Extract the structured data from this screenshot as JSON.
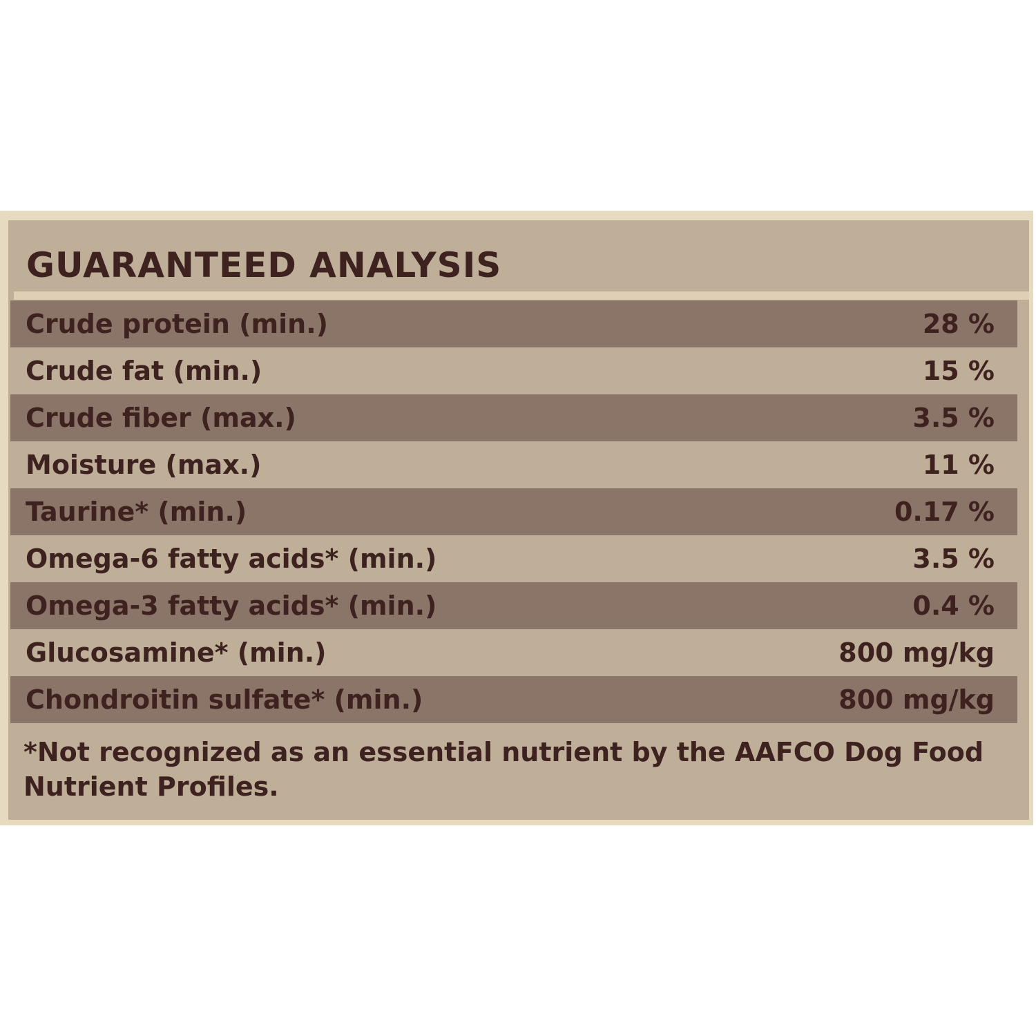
{
  "title": "GUARANTEED ANALYSIS",
  "rows": [
    {
      "label": "Crude protein (min.)",
      "value": "28 %"
    },
    {
      "label": "Crude fat (min.)",
      "value": "15 %"
    },
    {
      "label": "Crude fiber (max.)",
      "value": "3.5 %"
    },
    {
      "label": "Moisture (max.)",
      "value": "11 %"
    },
    {
      "label": "Taurine* (min.)",
      "value": "0.17 %"
    },
    {
      "label": "Omega-6 fatty acids* (min.)",
      "value": "3.5 %"
    },
    {
      "label": "Omega-3 fatty acids* (min.)",
      "value": "0.4 %"
    },
    {
      "label": "Glucosamine* (min.)",
      "value": "800 mg/kg"
    },
    {
      "label": "Chondroitin sulfate* (min.)",
      "value": "800 mg/kg"
    }
  ],
  "footnote": "*Not recognized as an essential nutrient by the AAFCO Dog Food Nutrient Profiles.",
  "colors": {
    "frame": "#e6dbc0",
    "panel": "#bfae98",
    "dark_row": "#8b7468",
    "text": "#3d2220"
  }
}
